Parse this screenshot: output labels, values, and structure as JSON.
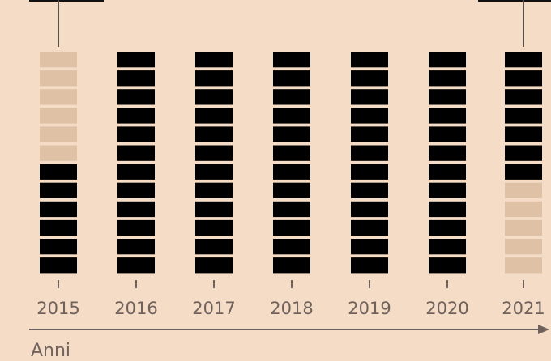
{
  "chart_data": {
    "type": "bar",
    "categories": [
      "2015",
      "2016",
      "2017",
      "2018",
      "2019",
      "2020",
      "2021"
    ],
    "filled_segments": [
      6,
      12,
      12,
      12,
      12,
      12,
      7
    ],
    "segments_per_bar": 12,
    "filled_color": "#000000",
    "empty_color": "#dfc1a6",
    "background_color": "#f4dcc6",
    "xlabel": "Anni",
    "ylabel": "",
    "grid": false,
    "legend": "none"
  }
}
